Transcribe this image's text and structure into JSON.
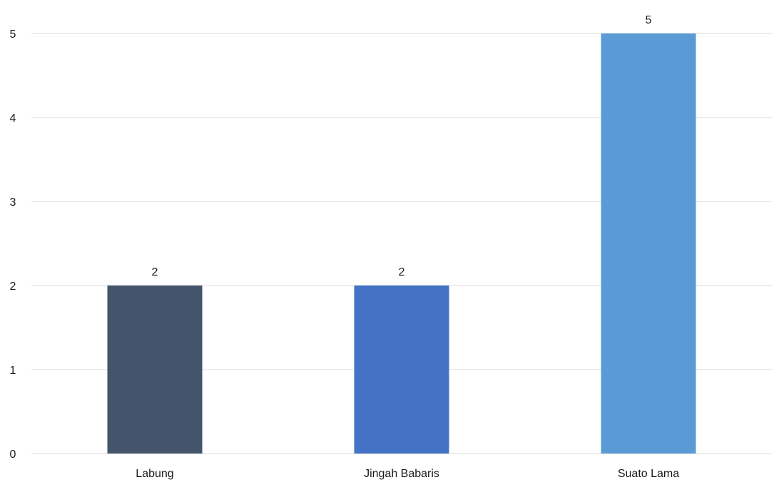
{
  "chart_data": {
    "type": "bar",
    "title": "",
    "xlabel": "",
    "ylabel": "",
    "categories": [
      "Labung",
      "Jingah Babaris",
      "Suato Lama"
    ],
    "values": [
      2,
      2,
      5
    ],
    "data_labels": [
      "2",
      "2",
      "5"
    ],
    "bar_colors": [
      "#44546A",
      "#4472C4",
      "#5B9BD5"
    ],
    "ylim": [
      0,
      5
    ],
    "yticks": [
      0,
      1,
      2,
      3,
      4,
      5
    ],
    "grid": true,
    "gridline_color": "#D9D9D9",
    "legend": "none"
  }
}
